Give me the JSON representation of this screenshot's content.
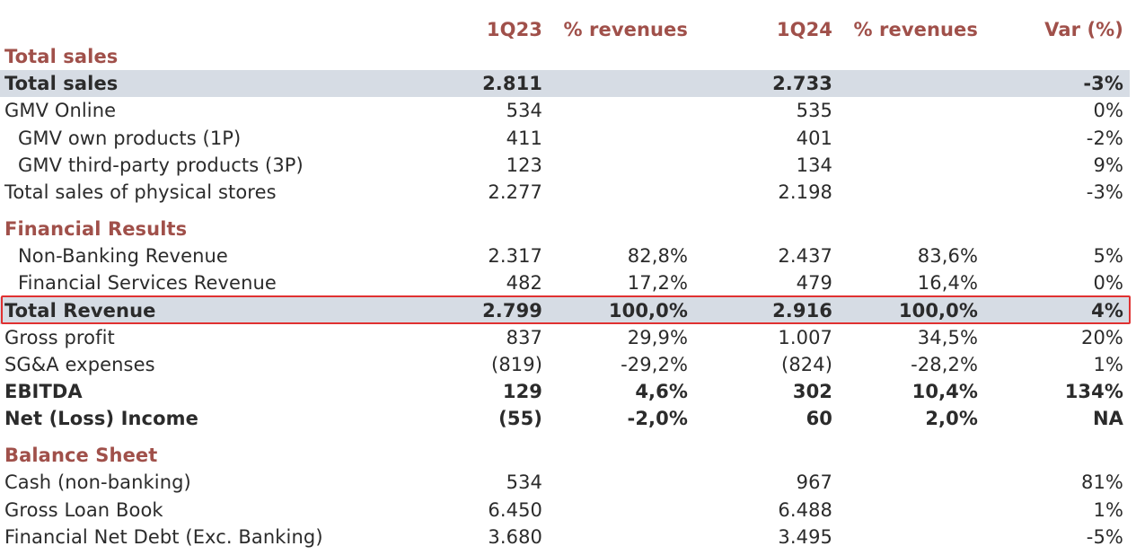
{
  "header": {
    "col_1q23": "1Q23",
    "col_pct23": "% revenues",
    "col_1q24": "1Q24",
    "col_pct24": "% revenues",
    "col_var": "Var (%)"
  },
  "sections": {
    "total_sales": "Total sales",
    "financial_results": "Financial Results",
    "balance_sheet": "Balance Sheet"
  },
  "rows": {
    "total_sales": {
      "label": "Total sales",
      "v1q23": "2.811",
      "pct23": "",
      "v1q24": "2.733",
      "pct24": "",
      "var": "-3%"
    },
    "gmv_online": {
      "label": "GMV Online",
      "v1q23": "534",
      "pct23": "",
      "v1q24": "535",
      "pct24": "",
      "var": "0%"
    },
    "gmv_1p": {
      "label": "GMV own products (1P)",
      "v1q23": "411",
      "pct23": "",
      "v1q24": "401",
      "pct24": "",
      "var": "-2%"
    },
    "gmv_3p": {
      "label": "GMV third-party products (3P)",
      "v1q23": "123",
      "pct23": "",
      "v1q24": "134",
      "pct24": "",
      "var": "9%"
    },
    "physical_stores": {
      "label": "Total sales of physical stores",
      "v1q23": "2.277",
      "pct23": "",
      "v1q24": "2.198",
      "pct24": "",
      "var": "-3%"
    },
    "non_banking_revenue": {
      "label": "Non-Banking Revenue",
      "v1q23": "2.317",
      "pct23": "82,8%",
      "v1q24": "2.437",
      "pct24": "83,6%",
      "var": "5%"
    },
    "financial_services_revenue": {
      "label": "Financial Services Revenue",
      "v1q23": "482",
      "pct23": "17,2%",
      "v1q24": "479",
      "pct24": "16,4%",
      "var": "0%"
    },
    "total_revenue": {
      "label": "Total Revenue",
      "v1q23": "2.799",
      "pct23": "100,0%",
      "v1q24": "2.916",
      "pct24": "100,0%",
      "var": "4%"
    },
    "gross_profit": {
      "label": "Gross profit",
      "v1q23": "837",
      "pct23": "29,9%",
      "v1q24": "1.007",
      "pct24": "34,5%",
      "var": "20%"
    },
    "sga_expenses": {
      "label": "SG&A expenses",
      "v1q23": "(819)",
      "pct23": "-29,2%",
      "v1q24": "(824)",
      "pct24": "-28,2%",
      "var": "1%"
    },
    "ebitda": {
      "label": "EBITDA",
      "v1q23": "129",
      "pct23": "4,6%",
      "v1q24": "302",
      "pct24": "10,4%",
      "var": "134%"
    },
    "net_income": {
      "label": "Net (Loss) Income",
      "v1q23": "(55)",
      "pct23": "-2,0%",
      "v1q24": "60",
      "pct24": "2,0%",
      "var": "NA"
    },
    "cash": {
      "label": "Cash (non-banking)",
      "v1q23": "534",
      "pct23": "",
      "v1q24": "967",
      "pct24": "",
      "var": "81%"
    },
    "gross_loan_book": {
      "label": "Gross Loan Book",
      "v1q23": "6.450",
      "pct23": "",
      "v1q24": "6.488",
      "pct24": "",
      "var": "1%"
    },
    "financial_net_debt": {
      "label": "Financial Net Debt (Exc. Banking)",
      "v1q23": "3.680",
      "pct23": "",
      "v1q24": "3.495",
      "pct24": "",
      "var": "-5%"
    }
  },
  "colors": {
    "section_header": "#a0504a",
    "shaded_row": "#d6dce4",
    "highlight_border": "#e03131",
    "text": "#2b2b2b"
  }
}
